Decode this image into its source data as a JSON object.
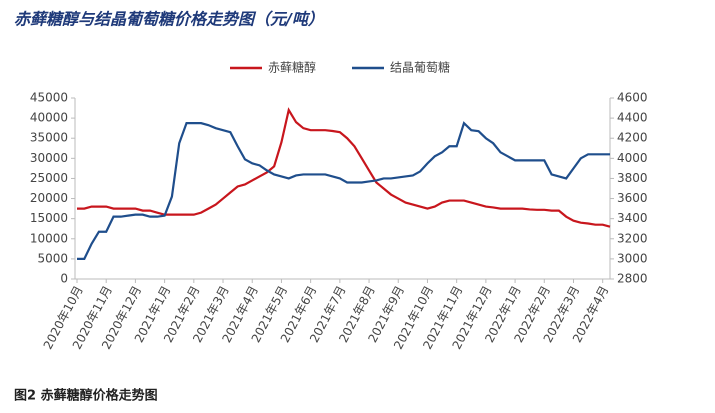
{
  "chart_data": {
    "type": "line",
    "title": "赤藓糖醇与结晶葡萄糖价格走势图（元/吨）",
    "caption": "图2 赤藓糖醇价格走势图",
    "categories": [
      "2020年10月",
      null,
      null,
      null,
      "2020年11月",
      null,
      null,
      null,
      "2020年12月",
      null,
      null,
      null,
      "2021年1月",
      null,
      null,
      null,
      "2021年2月",
      null,
      null,
      null,
      "2021年3月",
      null,
      null,
      null,
      "2021年4月",
      null,
      null,
      null,
      "2021年5月",
      null,
      null,
      null,
      "2021年6月",
      null,
      null,
      null,
      "2021年7月",
      null,
      null,
      null,
      "2021年8月",
      null,
      null,
      null,
      "2021年9月",
      null,
      null,
      null,
      "2021年10月",
      null,
      null,
      null,
      "2021年11月",
      null,
      null,
      null,
      "2021年12月",
      null,
      null,
      null,
      "2022年1月",
      null,
      null,
      null,
      "2022年2月",
      null,
      null,
      null,
      "2022年3月",
      null,
      null,
      null,
      "2022年4月",
      null
    ],
    "series": [
      {
        "name": "赤藓糖醇",
        "color": "#c8161d",
        "values": [
          17500,
          17500,
          18000,
          18000,
          18000,
          17500,
          17500,
          17500,
          17500,
          17000,
          17000,
          16500,
          16000,
          16000,
          16000,
          16000,
          16000,
          16500,
          17500,
          18500,
          20000,
          21500,
          23000,
          23500,
          24500,
          25500,
          26500,
          28000,
          34000,
          42000,
          39000,
          37500,
          37000,
          37000,
          37000,
          36800,
          36500,
          35000,
          33000,
          30000,
          27000,
          24000,
          22500,
          21000,
          20000,
          19000,
          18500,
          18000,
          17500,
          18000,
          19000,
          19500,
          19500,
          19500,
          19000,
          18500,
          18000,
          17800,
          17500,
          17500,
          17500,
          17500,
          17300,
          17200,
          17200,
          17000,
          17000,
          15500,
          14500,
          14000,
          13800,
          13500,
          13500,
          13000
        ]
      },
      {
        "name": "结晶葡萄糖",
        "color": "#1f4e8c",
        "axis": "y2",
        "values": [
          3000,
          3000,
          3150,
          3270,
          3270,
          3420,
          3420,
          3430,
          3440,
          3440,
          3420,
          3420,
          3430,
          3620,
          4150,
          4350,
          4350,
          4350,
          4330,
          4300,
          4280,
          4260,
          4120,
          3990,
          3950,
          3930,
          3880,
          3840,
          3820,
          3800,
          3830,
          3840,
          3840,
          3840,
          3840,
          3820,
          3800,
          3760,
          3760,
          3760,
          3770,
          3780,
          3800,
          3800,
          3810,
          3820,
          3830,
          3870,
          3950,
          4020,
          4060,
          4120,
          4120,
          4350,
          4280,
          4270,
          4200,
          4150,
          4060,
          4020,
          3980,
          3980,
          3980,
          3980,
          3980,
          3840,
          3820,
          3800,
          3900,
          4000,
          4040,
          4040,
          4040,
          4040
        ]
      }
    ],
    "ylim": [
      0,
      45000
    ],
    "yticks": [
      0,
      5000,
      10000,
      15000,
      20000,
      25000,
      30000,
      35000,
      40000,
      45000
    ],
    "y2lim": [
      2800,
      4600
    ],
    "y2ticks": [
      2800,
      3000,
      3200,
      3400,
      3600,
      3800,
      4000,
      4200,
      4400,
      4600
    ],
    "legend": "top"
  }
}
